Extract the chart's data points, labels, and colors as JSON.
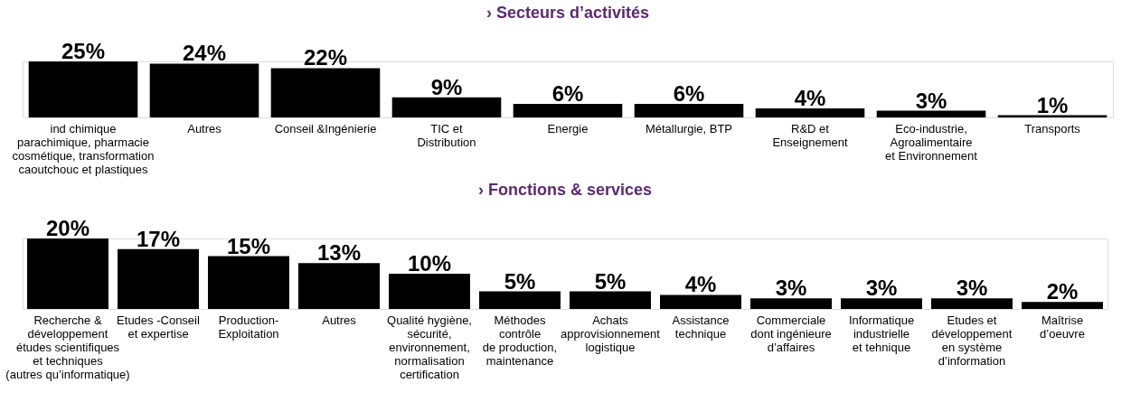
{
  "chart_data": [
    {
      "type": "bar",
      "title": "› Secteurs d’activités",
      "categories": [
        "ind chimique\nparachimique, pharmacie\ncosmétique, transformation\ncaoutchouc et plastiques",
        "Autres",
        "Conseil &Ingénierie",
        "TIC et\nDistribution",
        "Energie",
        "Métallurgie, BTP",
        "R&D et\nEnseignement",
        "Eco-industrie,\nAgroalimentaire\net Environnement",
        "Transports"
      ],
      "values": [
        25,
        24,
        22,
        9,
        6,
        6,
        4,
        3,
        1
      ],
      "value_labels": [
        "25%",
        "24%",
        "22%",
        "9%",
        "6%",
        "6%",
        "4%",
        "3%",
        "1%"
      ],
      "color": "#000000"
    },
    {
      "type": "bar",
      "title": "› Fonctions & services",
      "categories": [
        "Recherche &\ndéveloppement\nétudes scientifiques\net techniques\n(autres qu’informatique)",
        "Etudes -Conseil\net expertise",
        "Production-\nExploitation",
        "Autres",
        "Qualité hygiène,\nsécurité,\nenvironnement,\nnormalisation\ncertification",
        "Méthodes\ncontrôle\nde production,\nmaintenance",
        "Achats\napprovisionnement\nlogistique",
        "Assistance\ntechnique",
        "Commerciale\ndont ingénieure\nd’affaires",
        "Informatique\nindustrielle\net tehnique",
        "Etudes et\ndéveloppement\nen système\nd’information",
        "Maîtrise\nd’oeuvre"
      ],
      "values": [
        20,
        17,
        15,
        13,
        10,
        5,
        5,
        4,
        3,
        3,
        3,
        2
      ],
      "value_labels": [
        "20%",
        "17%",
        "15%",
        "13%",
        "10%",
        "5%",
        "5%",
        "4%",
        "3%",
        "3%",
        "3%",
        "2%"
      ],
      "color": "#000000"
    }
  ]
}
